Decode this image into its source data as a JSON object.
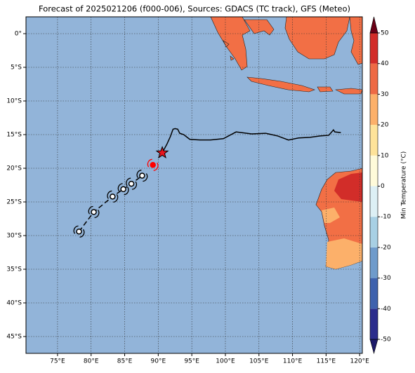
{
  "chart_data": {
    "type": "map",
    "title": "Forecast of 2025021206 (f000-006), Sources: GDACS (TC track), GFS (Meteo)",
    "xlim": [
      70.3,
      120.4
    ],
    "ylim": [
      -47.5,
      2.5
    ],
    "xticks": [
      {
        "value": 75,
        "label": "75°E"
      },
      {
        "value": 80,
        "label": "80°E"
      },
      {
        "value": 85,
        "label": "85°E"
      },
      {
        "value": 90,
        "label": "90°E"
      },
      {
        "value": 95,
        "label": "95°E"
      },
      {
        "value": 100,
        "label": "100°E"
      },
      {
        "value": 105,
        "label": "105°E"
      },
      {
        "value": 110,
        "label": "110°E"
      },
      {
        "value": 115,
        "label": "115°E"
      },
      {
        "value": 120,
        "label": "120°E"
      }
    ],
    "yticks": [
      {
        "value": 0,
        "label": "0°"
      },
      {
        "value": -5,
        "label": "5°S"
      },
      {
        "value": -10,
        "label": "10°S"
      },
      {
        "value": -15,
        "label": "15°S"
      },
      {
        "value": -20,
        "label": "20°S"
      },
      {
        "value": -25,
        "label": "25°S"
      },
      {
        "value": -30,
        "label": "30°S"
      },
      {
        "value": -35,
        "label": "35°S"
      },
      {
        "value": -40,
        "label": "40°S"
      },
      {
        "value": -45,
        "label": "45°S"
      }
    ],
    "grid": true,
    "ocean_color": "#92b4d9",
    "track": {
      "color": "#000000",
      "lon": [
        90.6,
        91.3,
        91.8,
        92.2,
        92.5,
        92.9,
        93.2,
        93.8,
        94.7,
        96.2,
        97.8,
        99.7,
        101.6,
        103.9,
        106.0,
        107.8,
        109.4,
        110.9,
        112.6,
        114.1,
        115.4,
        116.1,
        116.3,
        117.2
      ],
      "lat": [
        -17.7,
        -16.4,
        -15.3,
        -14.2,
        -14.1,
        -14.2,
        -14.8,
        -15.0,
        -15.7,
        -15.8,
        -15.8,
        -15.6,
        -14.6,
        -14.9,
        -14.8,
        -15.2,
        -15.8,
        -15.5,
        -15.4,
        -15.2,
        -15.1,
        -14.3,
        -14.6,
        -14.7
      ]
    },
    "forecast": {
      "color": "#000000",
      "lon": [
        78.2,
        80.4,
        83.2,
        84.8,
        86.0,
        87.6
      ],
      "lat": [
        -29.4,
        -26.5,
        -24.2,
        -23.1,
        -22.3,
        -21.1
      ]
    },
    "analysis": {
      "color": "#ff0000",
      "lon": [
        89.2
      ],
      "lat": [
        -19.5
      ]
    },
    "current": {
      "color": "#e8141e",
      "lon": [
        90.6
      ],
      "lat": [
        -17.7
      ]
    },
    "colorbar": {
      "label": "Min Temperature (°C)",
      "lim": [
        -50,
        50
      ],
      "ticks": [
        -50,
        -40,
        -30,
        -20,
        -10,
        0,
        10,
        20,
        30,
        40,
        50
      ],
      "colors": [
        "#2b2c8c",
        "#3f62ad",
        "#6f9bcb",
        "#a8d0e4",
        "#ddf0f5",
        "#fffbda",
        "#fee39a",
        "#fcb06a",
        "#ee6a45",
        "#d22d29"
      ]
    }
  }
}
